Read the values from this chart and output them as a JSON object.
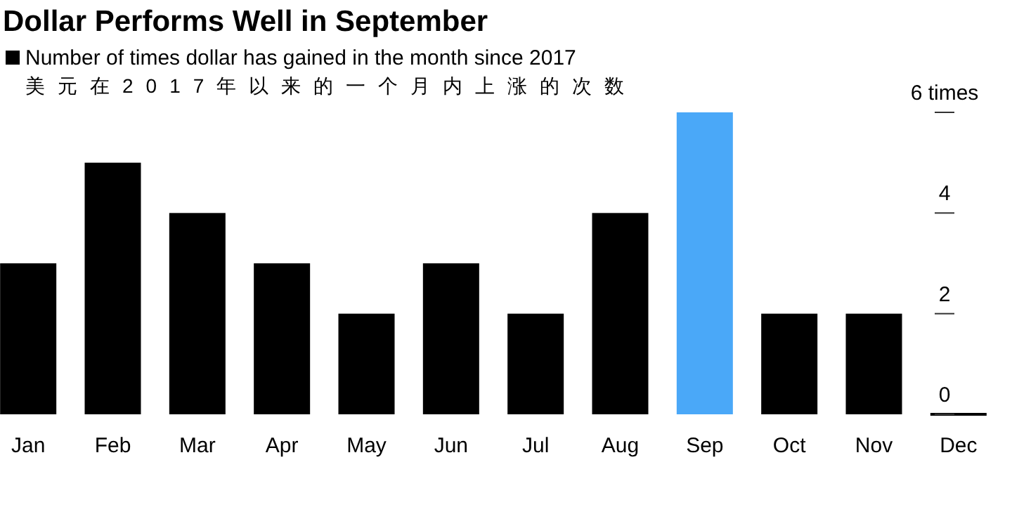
{
  "chart_data": {
    "type": "bar",
    "title": "Dollar Performs Well in September",
    "categories": [
      "Jan",
      "Feb",
      "Mar",
      "Apr",
      "May",
      "Jun",
      "Jul",
      "Aug",
      "Sep",
      "Oct",
      "Nov",
      "Dec"
    ],
    "series": [
      {
        "name": "Number of times dollar has gained in the month since 2017",
        "color": "#000000",
        "colors": [
          "#000000",
          "#000000",
          "#000000",
          "#000000",
          "#000000",
          "#000000",
          "#000000",
          "#000000",
          "#4aa8f8",
          "#000000",
          "#000000",
          "#000000"
        ],
        "values": [
          3,
          5,
          4,
          3,
          2,
          3,
          2,
          4,
          6,
          2,
          2,
          0
        ]
      }
    ],
    "annotations": [
      "美元在2017年以来的一个月内上涨的次数"
    ],
    "ylim": [
      0,
      6
    ],
    "yticks": [
      0,
      2,
      4,
      {
        "value": 6,
        "label": "6 times"
      }
    ],
    "legend": "top left",
    "grid": false
  }
}
